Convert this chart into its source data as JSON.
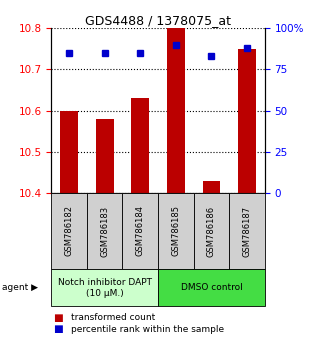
{
  "title": "GDS4488 / 1378075_at",
  "samples": [
    "GSM786182",
    "GSM786183",
    "GSM786184",
    "GSM786185",
    "GSM786186",
    "GSM786187"
  ],
  "red_values": [
    10.6,
    10.58,
    10.63,
    10.8,
    10.43,
    10.75
  ],
  "blue_values": [
    85,
    85,
    85,
    90,
    83,
    88
  ],
  "ylim_left": [
    10.4,
    10.8
  ],
  "ylim_right": [
    0,
    100
  ],
  "yticks_left": [
    10.4,
    10.5,
    10.6,
    10.7,
    10.8
  ],
  "yticks_right": [
    0,
    25,
    50,
    75,
    100
  ],
  "ytick_labels_right": [
    "0",
    "25",
    "50",
    "75",
    "100%"
  ],
  "bar_color": "#bb0000",
  "dot_color": "#0000cc",
  "agent_group1_label": "Notch inhibitor DAPT\n(10 μM.)",
  "agent_group1_color": "#ccffcc",
  "agent_group2_label": "DMSO control",
  "agent_group2_color": "#44dd44",
  "agent_label": "agent ▶",
  "legend_red": "transformed count",
  "legend_blue": "percentile rank within the sample",
  "bar_width": 0.5,
  "x_positions": [
    1,
    2,
    3,
    4,
    5,
    6
  ],
  "sample_box_color": "#d0d0d0",
  "title_fontsize": 9,
  "tick_fontsize": 7.5,
  "label_fontsize": 6.5,
  "legend_fontsize": 6.5
}
